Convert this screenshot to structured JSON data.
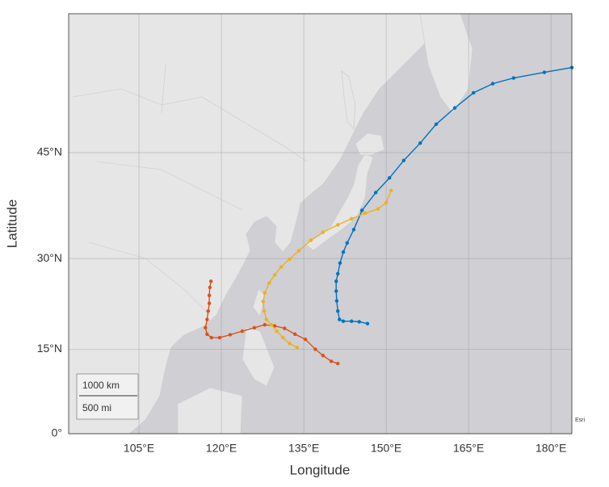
{
  "chart_data": {
    "type": "geo-line",
    "xlabel": "Longitude",
    "ylabel": "Latitude",
    "y_scale": "mercator",
    "xlim": [
      92.2,
      183.8
    ],
    "ylim": [
      0,
      60
    ],
    "xticks": [
      {
        "value": 105,
        "label": "105°E"
      },
      {
        "value": 120,
        "label": "120°E"
      },
      {
        "value": 135,
        "label": "135°E"
      },
      {
        "value": 150,
        "label": "150°E"
      },
      {
        "value": 165,
        "label": "165°E"
      },
      {
        "value": 180,
        "label": "180°E"
      }
    ],
    "yticks": [
      {
        "value": 0,
        "label": "0°"
      },
      {
        "value": 15,
        "label": "15°N"
      },
      {
        "value": 30,
        "label": "30°N"
      },
      {
        "value": 45,
        "label": "45°N"
      }
    ],
    "grid": true,
    "scalebar": [
      "1000 km",
      "500 mi"
    ],
    "attribution": "Esri",
    "series": [
      {
        "color": "#0072BD",
        "x": [
          146.6,
          145.1,
          143.7,
          142.2,
          141.5,
          141.2,
          141.0,
          140.9,
          140.9,
          141.2,
          141.6,
          142.2,
          142.9,
          144.1,
          145.6,
          148.1,
          150.6,
          153.2,
          156.2,
          159.1,
          162.5,
          165.9,
          169.4,
          173.2,
          178.8,
          183.8
        ],
        "values": [
          19.4,
          19.7,
          19.8,
          19.8,
          20.1,
          21.5,
          23.2,
          24.8,
          26.4,
          27.6,
          29.3,
          31.0,
          32.4,
          34.4,
          37.2,
          39.7,
          41.7,
          44.0,
          46.2,
          48.5,
          50.4,
          52.1,
          53.1,
          53.7,
          54.3,
          54.8
        ]
      },
      {
        "color": "#D95319",
        "x": [
          141.2,
          140.0,
          138.5,
          137.1,
          135.3,
          133.4,
          131.5,
          129.7,
          127.9,
          126.0,
          123.8,
          121.6,
          119.7,
          118.2,
          117.4,
          117.1,
          117.4,
          117.6,
          117.8,
          117.8,
          117.9,
          118.1
        ],
        "values": [
          12.5,
          12.9,
          13.9,
          15.0,
          16.7,
          17.6,
          18.6,
          19.0,
          19.2,
          18.7,
          18.1,
          17.5,
          17.0,
          17.0,
          17.6,
          18.7,
          20.1,
          21.5,
          22.8,
          24.1,
          25.4,
          26.4
        ]
      },
      {
        "color": "#EDB120",
        "x": [
          133.8,
          132.4,
          131.2,
          130.1,
          129.1,
          128.2,
          127.8,
          127.6,
          127.9,
          128.7,
          129.7,
          130.9,
          132.4,
          134.1,
          136.3,
          138.5,
          141.2,
          143.7,
          146.2,
          148.5,
          150.0,
          150.9
        ],
        "values": [
          15.3,
          16.0,
          17.0,
          18.1,
          19.2,
          20.1,
          21.5,
          23.1,
          24.5,
          26.1,
          27.4,
          28.7,
          29.9,
          31.2,
          32.8,
          34.0,
          35.1,
          36.0,
          36.8,
          37.4,
          38.3,
          40.0
        ]
      }
    ]
  }
}
